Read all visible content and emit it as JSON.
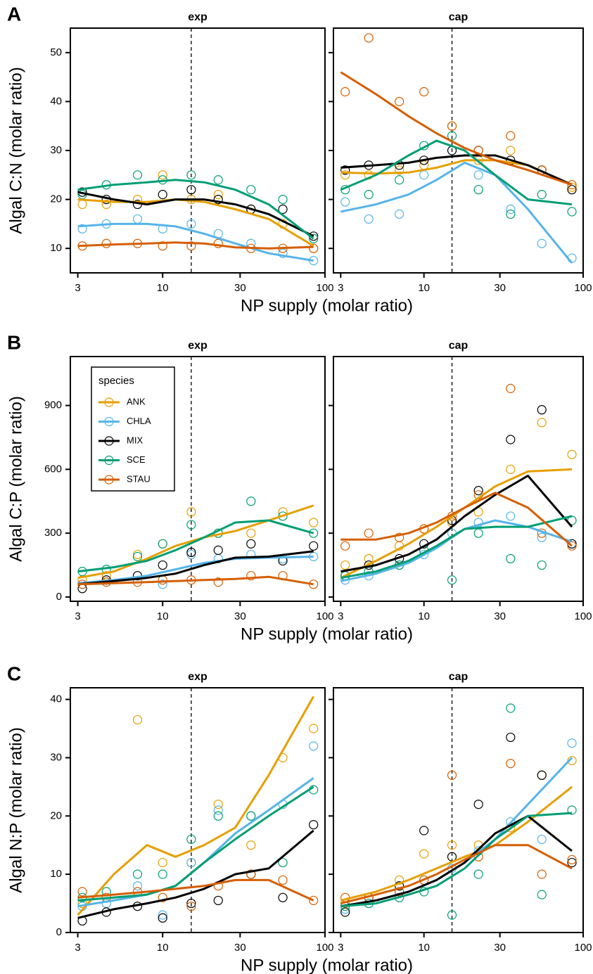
{
  "chart_data": [
    {
      "type": "scatter",
      "panel_label": "A",
      "strip": "exp",
      "ylabel": "Algal C:N (molar ratio)",
      "xlabel": "NP supply (molar ratio)",
      "log_x": true,
      "xlim": [
        2.7,
        100
      ],
      "xticks": [
        3,
        10,
        30,
        100
      ],
      "ylim": [
        5,
        55
      ],
      "yticks": [
        10,
        20,
        30,
        40,
        50
      ],
      "reference_x": 15,
      "x": [
        3.2,
        4.5,
        7,
        10,
        15,
        22,
        35,
        55,
        85
      ],
      "fit_x": [
        3,
        5,
        8,
        12,
        18,
        28,
        45,
        85
      ],
      "series": [
        {
          "values": [
            19,
            19,
            20,
            25,
            20,
            21,
            18,
            15,
            10
          ],
          "fit_values": [
            20,
            19.5,
            19.5,
            20,
            19.5,
            18,
            16,
            10.5
          ]
        },
        {
          "values": [
            14,
            15,
            16,
            14,
            15,
            13,
            11,
            9,
            7.5
          ],
          "fit_values": [
            14.5,
            15,
            15,
            14.5,
            13,
            11,
            9,
            7.5
          ]
        },
        {
          "values": [
            21.5,
            20,
            19,
            21,
            22,
            20,
            18,
            18,
            12.5
          ],
          "fit_values": [
            21.5,
            20,
            19,
            20,
            20,
            19,
            17,
            12.5
          ]
        },
        {
          "values": [
            21,
            23,
            25,
            24,
            25,
            24,
            22,
            20,
            12
          ],
          "fit_values": [
            22,
            23,
            23.5,
            24,
            23.5,
            22,
            19,
            12
          ]
        },
        {
          "values": [
            10.5,
            11,
            11,
            10.5,
            10.5,
            11,
            10,
            10,
            10
          ],
          "fit_values": [
            10.5,
            10.8,
            11,
            11.2,
            11,
            10.2,
            10,
            10.3
          ]
        }
      ]
    },
    {
      "type": "scatter",
      "strip": "cap",
      "log_x": true,
      "xlim": [
        2.7,
        100
      ],
      "xticks": [
        3,
        10,
        30,
        100
      ],
      "ylim": [
        5,
        55
      ],
      "yticks": [
        10,
        20,
        30,
        40,
        50
      ],
      "reference_x": 15,
      "x": [
        3.2,
        4.5,
        7,
        10,
        15,
        22,
        35,
        55,
        85
      ],
      "fit_x": [
        3,
        5,
        8,
        12,
        18,
        28,
        45,
        85
      ],
      "series": [
        {
          "values": [
            25,
            25,
            26,
            27,
            35,
            28,
            30,
            26,
            22.5
          ],
          "fit_values": [
            25.5,
            25.3,
            25.5,
            26.5,
            28,
            28,
            27,
            23
          ]
        },
        {
          "values": [
            19.5,
            16,
            17,
            25,
            30,
            25,
            18,
            11,
            8
          ],
          "fit_values": [
            17.5,
            19,
            21,
            24,
            27.5,
            25,
            18,
            7
          ]
        },
        {
          "values": [
            26,
            27,
            27,
            28,
            30,
            30,
            28,
            26,
            22
          ],
          "fit_values": [
            26.5,
            27,
            27.5,
            28.5,
            29,
            29,
            27,
            23
          ]
        },
        {
          "values": [
            22,
            21,
            24,
            31,
            33,
            22,
            17,
            21,
            17.5
          ],
          "fit_values": [
            22,
            25,
            29,
            32,
            30,
            25,
            20,
            19
          ]
        },
        {
          "values": [
            42,
            53,
            40,
            42,
            35,
            30,
            33,
            26,
            23
          ],
          "fit_values": [
            46,
            41.5,
            37,
            33.5,
            30.5,
            28,
            26,
            23
          ]
        }
      ]
    },
    {
      "type": "scatter",
      "panel_label": "B",
      "strip": "exp",
      "ylabel": "Algal C:P (molar ratio)",
      "xlabel": "NP supply (molar ratio)",
      "log_x": true,
      "xlim": [
        2.7,
        100
      ],
      "xticks": [
        3,
        10,
        30,
        100
      ],
      "ylim": [
        -20,
        1130
      ],
      "yticks": [
        0,
        300,
        600,
        900
      ],
      "reference_x": 15,
      "x": [
        3.2,
        4.5,
        7,
        10,
        15,
        22,
        35,
        55,
        85
      ],
      "fit_x": [
        3,
        5,
        8,
        12,
        18,
        28,
        45,
        85
      ],
      "series": [
        {
          "values": [
            80,
            100,
            200,
            250,
            400,
            300,
            300,
            400,
            350
          ],
          "fit_values": [
            90,
            120,
            180,
            240,
            280,
            310,
            360,
            430
          ]
        },
        {
          "values": [
            60,
            70,
            100,
            60,
            200,
            180,
            200,
            180,
            190
          ],
          "fit_values": [
            65,
            80,
            100,
            130,
            160,
            180,
            185,
            190
          ]
        },
        {
          "values": [
            40,
            80,
            100,
            150,
            210,
            220,
            250,
            170,
            240
          ],
          "fit_values": [
            60,
            75,
            90,
            110,
            150,
            185,
            190,
            215
          ]
        },
        {
          "values": [
            120,
            130,
            190,
            250,
            340,
            300,
            450,
            380,
            300
          ],
          "fit_values": [
            120,
            140,
            170,
            220,
            280,
            350,
            360,
            300
          ]
        },
        {
          "values": [
            60,
            70,
            70,
            80,
            80,
            70,
            100,
            100,
            60
          ],
          "fit_values": [
            60,
            65,
            70,
            75,
            80,
            85,
            95,
            60
          ]
        }
      ]
    },
    {
      "type": "scatter",
      "strip": "cap",
      "log_x": true,
      "xlim": [
        2.7,
        100
      ],
      "xticks": [
        3,
        10,
        30,
        100
      ],
      "ylim": [
        -20,
        1130
      ],
      "yticks": [
        0,
        300,
        600,
        900
      ],
      "reference_x": 15,
      "x": [
        3.2,
        4.5,
        7,
        10,
        15,
        22,
        35,
        55,
        85
      ],
      "fit_x": [
        3,
        5,
        8,
        12,
        18,
        28,
        45,
        85
      ],
      "series": [
        {
          "values": [
            150,
            180,
            240,
            320,
            350,
            400,
            600,
            820,
            670
          ],
          "fit_values": [
            90,
            170,
            250,
            330,
            420,
            520,
            590,
            600
          ]
        },
        {
          "values": [
            80,
            100,
            150,
            200,
            300,
            350,
            380,
            280,
            250
          ],
          "fit_values": [
            75,
            110,
            160,
            230,
            320,
            360,
            330,
            260
          ]
        },
        {
          "values": [
            100,
            150,
            180,
            250,
            360,
            500,
            740,
            880,
            250
          ],
          "fit_values": [
            120,
            150,
            200,
            270,
            380,
            480,
            570,
            330
          ]
        },
        {
          "values": [
            100,
            120,
            150,
            220,
            80,
            300,
            180,
            150,
            360
          ],
          "fit_values": [
            90,
            120,
            170,
            240,
            320,
            330,
            330,
            380
          ]
        },
        {
          "values": [
            240,
            300,
            280,
            320,
            380,
            480,
            980,
            300,
            240
          ],
          "fit_values": [
            270,
            270,
            300,
            350,
            420,
            490,
            420,
            240
          ]
        }
      ]
    },
    {
      "type": "scatter",
      "panel_label": "C",
      "strip": "exp",
      "ylabel": "Algal N:P (molar ratio)",
      "xlabel": "NP supply (molar ratio)",
      "log_x": true,
      "xlim": [
        2.7,
        100
      ],
      "xticks": [
        3,
        10,
        30,
        100
      ],
      "ylim": [
        0,
        42
      ],
      "yticks": [
        0,
        10,
        20,
        30,
        40
      ],
      "reference_x": 15,
      "x": [
        3.2,
        4.5,
        7,
        10,
        15,
        22,
        35,
        55,
        85
      ],
      "fit_x": [
        3,
        5,
        8,
        12,
        18,
        28,
        45,
        85
      ],
      "series": [
        {
          "values": [
            5,
            5,
            36.5,
            12,
            12,
            22,
            15,
            30,
            35
          ],
          "fit_values": [
            3,
            10,
            15,
            13,
            15,
            18,
            27,
            40.5
          ]
        },
        {
          "values": [
            4.5,
            5,
            8,
            3,
            12,
            21,
            20,
            22,
            32
          ],
          "fit_values": [
            4.5,
            5.5,
            6.5,
            8,
            12,
            17,
            21,
            26.5
          ]
        },
        {
          "values": [
            2,
            3.5,
            4.5,
            2.5,
            5,
            5.5,
            10,
            6,
            18.5
          ],
          "fit_values": [
            2.5,
            4,
            5,
            6,
            7.5,
            10,
            11,
            17.5
          ]
        },
        {
          "values": [
            6,
            7,
            10,
            10,
            16,
            20,
            20,
            12,
            24.5
          ],
          "fit_values": [
            5.5,
            6,
            6.5,
            8,
            12,
            16,
            20,
            25
          ]
        },
        {
          "values": [
            7,
            6,
            7,
            6,
            4.5,
            8,
            10,
            9,
            5.5
          ],
          "fit_values": [
            6,
            6.5,
            7,
            7.5,
            8,
            9,
            9,
            5.5
          ]
        }
      ]
    },
    {
      "type": "scatter",
      "strip": "cap",
      "log_x": true,
      "xlim": [
        2.7,
        100
      ],
      "xticks": [
        3,
        10,
        30,
        100
      ],
      "ylim": [
        0,
        42
      ],
      "yticks": [
        0,
        10,
        20,
        30,
        40
      ],
      "reference_x": 15,
      "x": [
        3.2,
        4.5,
        7,
        10,
        15,
        22,
        35,
        55,
        85
      ],
      "fit_x": [
        3,
        5,
        8,
        12,
        18,
        28,
        45,
        85
      ],
      "series": [
        {
          "values": [
            5,
            6,
            9,
            13.5,
            15,
            15,
            18,
            27,
            29.5
          ],
          "fit_values": [
            5.5,
            7,
            9,
            11,
            13,
            15,
            19,
            25
          ]
        },
        {
          "values": [
            4,
            5,
            7,
            9,
            11,
            14,
            19,
            16,
            32.5
          ],
          "fit_values": [
            4.5,
            5.5,
            7,
            9,
            12,
            16,
            22,
            30
          ]
        },
        {
          "values": [
            3.5,
            6,
            8,
            17.5,
            13,
            22,
            33.5,
            27,
            12
          ],
          "fit_values": [
            4.5,
            5.5,
            7,
            9,
            12,
            17,
            20,
            14
          ]
        },
        {
          "values": [
            4.5,
            5,
            6,
            7,
            3,
            10,
            38.5,
            6.5,
            21
          ],
          "fit_values": [
            4.5,
            5,
            6.5,
            8,
            11,
            16,
            20,
            20.5
          ]
        },
        {
          "values": [
            6,
            6,
            7,
            9,
            27,
            13,
            29,
            10,
            12.5
          ],
          "fit_values": [
            5,
            6.5,
            8,
            10,
            12.5,
            15,
            15,
            11
          ]
        }
      ]
    }
  ],
  "legend": {
    "title": "species",
    "panel": 2,
    "corner": "upper left",
    "entries": [
      {
        "name": "ANK",
        "color": "#e69f00"
      },
      {
        "name": "CHLA",
        "color": "#56b4e9"
      },
      {
        "name": "MIX",
        "color": "#000000"
      },
      {
        "name": "SCE",
        "color": "#009e73"
      },
      {
        "name": "STAU",
        "color": "#d55e00"
      }
    ]
  }
}
